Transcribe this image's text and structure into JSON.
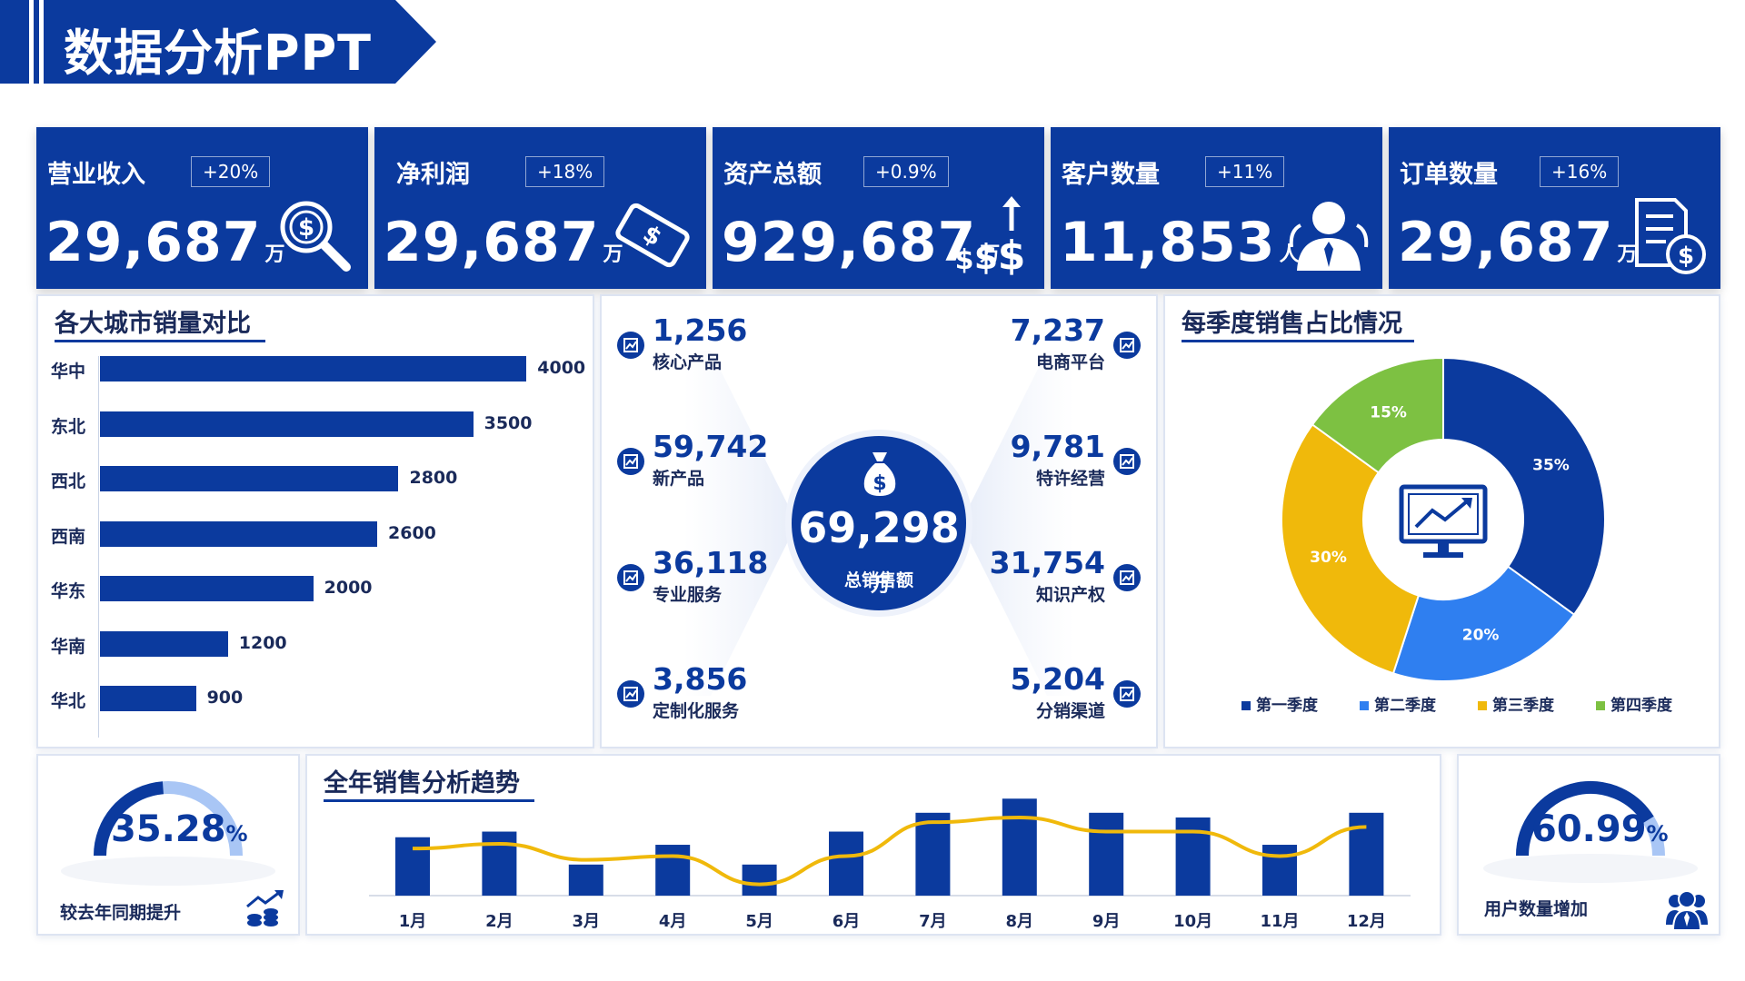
{
  "page": {
    "title": "数据分析PPT"
  },
  "kpis": [
    {
      "label": "营业收入",
      "change": "+20%",
      "value": "29,687",
      "unit": "万",
      "icon": "money-search-icon"
    },
    {
      "label": "净利润",
      "change": "+18%",
      "value": "29,687",
      "unit": "万",
      "icon": "banknote-icon"
    },
    {
      "label": "资产总额",
      "change": "+0.9%",
      "value": "929,687",
      "unit": "万",
      "icon": "dollar-growth-icon"
    },
    {
      "label": "客户数量",
      "change": "+11%",
      "value": "11,853",
      "unit": "人",
      "icon": "user-icon"
    },
    {
      "label": "订单数量",
      "change": "+16%",
      "value": "29,687",
      "unit": "万",
      "icon": "invoice-icon"
    }
  ],
  "city_panel": {
    "title": "各大城市销量对比"
  },
  "center_panel": {
    "total_value": "69,298",
    "total_unit": "万",
    "total_label": "总销售额",
    "left_metrics": [
      {
        "value": "1,256",
        "label": "核心产品"
      },
      {
        "value": "59,742",
        "label": "新产品"
      },
      {
        "value": "36,118",
        "label": "专业服务"
      },
      {
        "value": "3,856",
        "label": "定制化服务"
      }
    ],
    "right_metrics": [
      {
        "value": "7,237",
        "label": "电商平台"
      },
      {
        "value": "9,781",
        "label": "特许经营"
      },
      {
        "value": "31,754",
        "label": "知识产权"
      },
      {
        "value": "5,204",
        "label": "分销渠道"
      }
    ]
  },
  "pie_panel": {
    "title": "每季度销售占比情况"
  },
  "trend_panel": {
    "title": "全年销售分析趋势"
  },
  "gauges": [
    {
      "value": "35.28",
      "pct": "%",
      "fraction": 0.3528,
      "caption": "较去年同期提升",
      "icon": "coins-growth-icon"
    },
    {
      "value": "60.99",
      "pct": "%",
      "fraction": 0.6099,
      "caption": "用户数量增加",
      "icon": "users-icon"
    }
  ],
  "colors": {
    "primary": "#0b3a9e",
    "light_blue": "#2f7ff0",
    "yellow": "#f0b90b",
    "green": "#7dc142",
    "gauge_track": "#a9c6f5"
  },
  "chart_data": [
    {
      "type": "bar",
      "orientation": "horizontal",
      "categories": [
        "华中",
        "东北",
        "西北",
        "西南",
        "华东",
        "华南",
        "华北"
      ],
      "values": [
        4000,
        3500,
        2800,
        2600,
        2000,
        1200,
        900
      ],
      "title": "各大城市销量对比",
      "xlim": [
        0,
        4000
      ]
    },
    {
      "type": "pie",
      "style": "donut",
      "title": "每季度销售占比情况",
      "categories": [
        "第一季度",
        "第二季度",
        "第三季度",
        "第四季度"
      ],
      "values": [
        35,
        20,
        30,
        15
      ],
      "labels": [
        "35%",
        "20%",
        "30%",
        "15%"
      ],
      "colors": [
        "#0b3a9e",
        "#2f7ff0",
        "#f0b90b",
        "#7dc142"
      ],
      "legend": "bottom"
    },
    {
      "type": "bar",
      "title": "全年销售分析趋势",
      "categories": [
        "1月",
        "2月",
        "3月",
        "4月",
        "5月",
        "6月",
        "7月",
        "8月",
        "9月",
        "10月",
        "11月",
        "12月"
      ],
      "series": [
        {
          "type": "bar",
          "values": [
            62,
            68,
            33,
            54,
            33,
            68,
            88,
            103,
            88,
            83,
            54,
            88
          ],
          "color": "#0b3a9e"
        },
        {
          "type": "line",
          "values": [
            50,
            55,
            38,
            42,
            12,
            42,
            78,
            83,
            68,
            68,
            42,
            73
          ],
          "color": "#f0b90b"
        }
      ],
      "ylim": [
        0,
        110
      ]
    }
  ]
}
